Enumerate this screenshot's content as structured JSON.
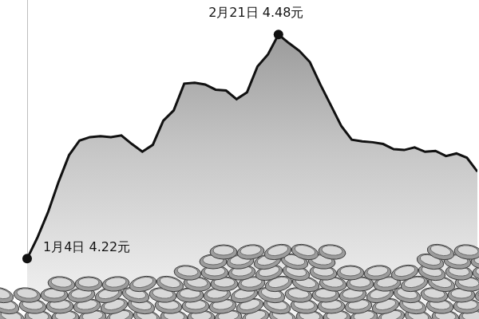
{
  "chart_data": {
    "type": "line",
    "categories": [
      null,
      null,
      null,
      null,
      null,
      null,
      null,
      null,
      null,
      null,
      null,
      null,
      null,
      null,
      null,
      null,
      null,
      null,
      null,
      null,
      null,
      null,
      null,
      null,
      null,
      null,
      null,
      null,
      null,
      null,
      null,
      null,
      null,
      null,
      null,
      null,
      null,
      null,
      null,
      null,
      null,
      null,
      null,
      null
    ],
    "values": [
      4.22,
      4.245,
      4.274,
      4.309,
      4.34,
      4.357,
      4.361,
      4.362,
      4.361,
      4.363,
      4.353,
      4.344,
      4.352,
      4.38,
      4.392,
      4.423,
      4.424,
      4.422,
      4.416,
      4.415,
      4.405,
      4.413,
      4.443,
      4.457,
      4.48,
      4.47,
      4.461,
      4.448,
      4.422,
      4.398,
      4.374,
      4.358,
      4.356,
      4.355,
      4.353,
      4.347,
      4.346,
      4.349,
      4.344,
      4.345,
      4.339,
      4.342,
      4.337,
      4.321
    ],
    "color": "#111111",
    "ylim": [
      4.15,
      4.52
    ],
    "grid": false,
    "tick_labels": false,
    "annotations": [
      {
        "text": "1月4日 4.22元",
        "value": 4.22
      },
      {
        "text": "2月21日 4.48元",
        "value": 4.48
      }
    ]
  }
}
